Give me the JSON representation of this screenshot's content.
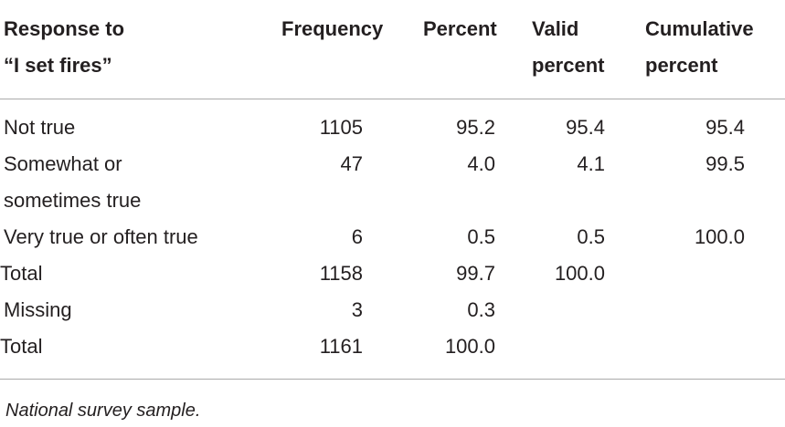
{
  "table": {
    "header": [
      [
        "Response to",
        "“I set fires”"
      ],
      [
        "Frequency"
      ],
      [
        "Percent"
      ],
      [
        "Valid",
        "percent"
      ],
      [
        "Cumulative",
        "percent"
      ]
    ],
    "rows": [
      [
        "Not true",
        "1105",
        "95.2",
        "95.4",
        "95.4"
      ],
      [
        "Somewhat or sometimes true",
        "47",
        "4.0",
        "4.1",
        "99.5"
      ],
      [
        "Very true or often true",
        "6",
        "0.5",
        "0.5",
        "100.0"
      ],
      [
        "Total",
        "1158",
        "99.7",
        "100.0"
      ],
      [
        "Missing",
        "3",
        "0.3"
      ],
      [
        "Total",
        "1161",
        "100.0"
      ]
    ]
  },
  "footnote": "National survey sample."
}
